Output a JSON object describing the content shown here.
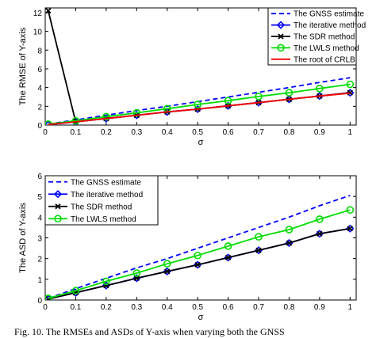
{
  "caption": "Fig. 10.   The RMSEs and ASDs of Y-axis when varying both the GNSS",
  "chart_data": [
    {
      "type": "line",
      "ylabel": "The RMSE of Y-axis",
      "xlabel": "σ",
      "xlim": [
        0,
        1.02
      ],
      "ylim": [
        0,
        12.5
      ],
      "xticks": [
        "0",
        "0.1",
        "0.2",
        "0.3",
        "0.4",
        "0.5",
        "0.6",
        "0.7",
        "0.8",
        "0.9",
        "1"
      ],
      "yticks": [
        "0",
        "2",
        "4",
        "6",
        "8",
        "10",
        "12"
      ],
      "legend_position": "top-right",
      "x": [
        0.01,
        0.1,
        0.2,
        0.3,
        0.4,
        0.5,
        0.6,
        0.7,
        0.8,
        0.9,
        1.0
      ],
      "series": [
        {
          "name": "The GNSS estimate",
          "color": "#0000ff",
          "dash": "dashed",
          "marker": "none",
          "values": [
            0.1,
            0.55,
            1.05,
            1.55,
            2.0,
            2.5,
            3.0,
            3.5,
            4.0,
            4.55,
            5.05
          ]
        },
        {
          "name": "The iterative method",
          "color": "#0000ff",
          "dash": "solid",
          "marker": "diamond",
          "values": [
            0.05,
            0.35,
            0.7,
            1.05,
            1.4,
            1.7,
            2.05,
            2.4,
            2.75,
            3.1,
            3.45
          ]
        },
        {
          "name": "The SDR method",
          "color": "#000000",
          "dash": "solid",
          "marker": "x",
          "values": [
            12.2,
            0.35,
            0.7,
            1.05,
            1.4,
            1.7,
            2.05,
            2.4,
            2.75,
            3.1,
            3.45
          ]
        },
        {
          "name": "The LWLS method",
          "color": "#00dd00",
          "dash": "solid",
          "marker": "circle",
          "values": [
            0.1,
            0.45,
            0.9,
            1.3,
            1.75,
            2.2,
            2.6,
            3.05,
            3.45,
            3.9,
            4.35
          ]
        },
        {
          "name": "The root of CRLB",
          "color": "#ff0000",
          "dash": "solid",
          "marker": "none",
          "values": [
            0.05,
            0.35,
            0.7,
            1.05,
            1.4,
            1.7,
            2.05,
            2.4,
            2.75,
            3.1,
            3.4
          ]
        }
      ]
    },
    {
      "type": "line",
      "ylabel": "The ASD of Y-axis",
      "xlabel": "σ",
      "xlim": [
        0,
        1.02
      ],
      "ylim": [
        0,
        6
      ],
      "xticks": [
        "0",
        "0.1",
        "0.2",
        "0.3",
        "0.4",
        "0.5",
        "0.6",
        "0.7",
        "0.8",
        "0.9",
        "1"
      ],
      "yticks": [
        "0",
        "1",
        "2",
        "3",
        "4",
        "5",
        "6"
      ],
      "legend_position": "top-left",
      "x": [
        0.01,
        0.1,
        0.2,
        0.3,
        0.4,
        0.5,
        0.6,
        0.7,
        0.8,
        0.9,
        1.0
      ],
      "series": [
        {
          "name": "The GNSS estimate",
          "color": "#0000ff",
          "dash": "dashed",
          "marker": "none",
          "values": [
            0.08,
            0.55,
            1.05,
            1.55,
            2.0,
            2.5,
            3.0,
            3.5,
            4.0,
            4.55,
            5.05
          ]
        },
        {
          "name": "The iterative method",
          "color": "#0000ff",
          "dash": "solid",
          "marker": "diamond",
          "values": [
            0.05,
            0.35,
            0.7,
            1.05,
            1.38,
            1.7,
            2.05,
            2.4,
            2.75,
            3.2,
            3.45
          ]
        },
        {
          "name": "The SDR method",
          "color": "#000000",
          "dash": "solid",
          "marker": "x",
          "values": [
            0.05,
            0.35,
            0.7,
            1.05,
            1.38,
            1.7,
            2.05,
            2.4,
            2.75,
            3.2,
            3.45
          ]
        },
        {
          "name": "The LWLS method",
          "color": "#00dd00",
          "dash": "solid",
          "marker": "circle",
          "values": [
            0.08,
            0.45,
            0.9,
            1.3,
            1.75,
            2.15,
            2.6,
            3.05,
            3.4,
            3.9,
            4.35
          ]
        }
      ]
    }
  ]
}
